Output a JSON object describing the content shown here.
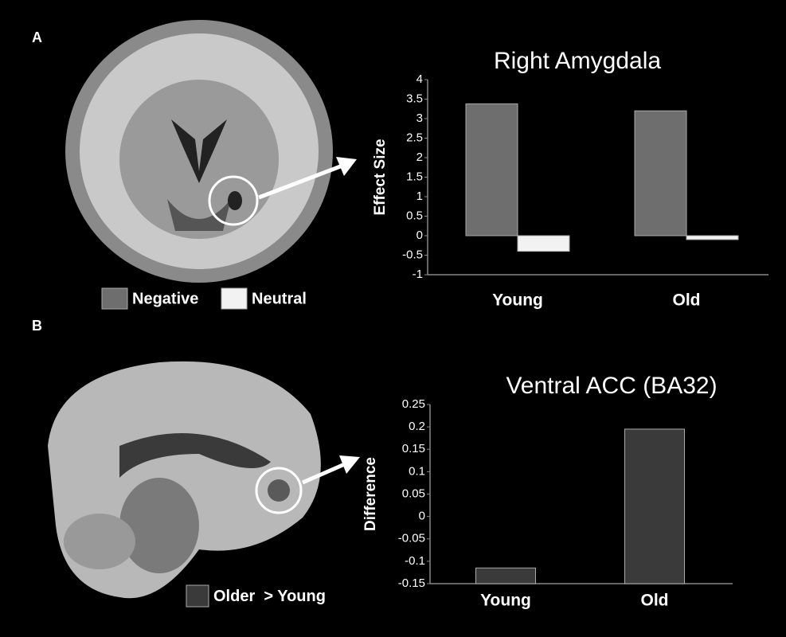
{
  "panels": [
    "A",
    "B"
  ],
  "chart_data": [
    {
      "type": "bar",
      "title": "Right Amygdala",
      "y_label": "Effect Size",
      "categories": [
        "Young",
        "Old"
      ],
      "series": [
        {
          "name": "Negative",
          "color": "#6e6e6e",
          "values": [
            3.38,
            3.2
          ]
        },
        {
          "name": "Neutral",
          "color": "#f2f2f2",
          "values": [
            -0.4,
            -0.1
          ]
        }
      ],
      "ylim": [
        -1,
        4
      ],
      "yticks": [
        -1,
        -0.5,
        0,
        0.5,
        1,
        1.5,
        2,
        2.5,
        3,
        3.5,
        4
      ],
      "bars_from_axis_bottom": false
    },
    {
      "type": "bar",
      "title": "Ventral ACC (BA32)",
      "y_label": "Difference",
      "categories": [
        "Young",
        "Old"
      ],
      "series": [
        {
          "name": "Older  > Young",
          "color": "#3a3a3a",
          "values": [
            -0.115,
            0.195
          ]
        }
      ],
      "ylim": [
        -0.15,
        0.25
      ],
      "yticks": [
        -0.15,
        -0.1,
        -0.05,
        0,
        0.05,
        0.1,
        0.15,
        0.2,
        0.25
      ],
      "bars_from_axis_bottom": true
    }
  ]
}
